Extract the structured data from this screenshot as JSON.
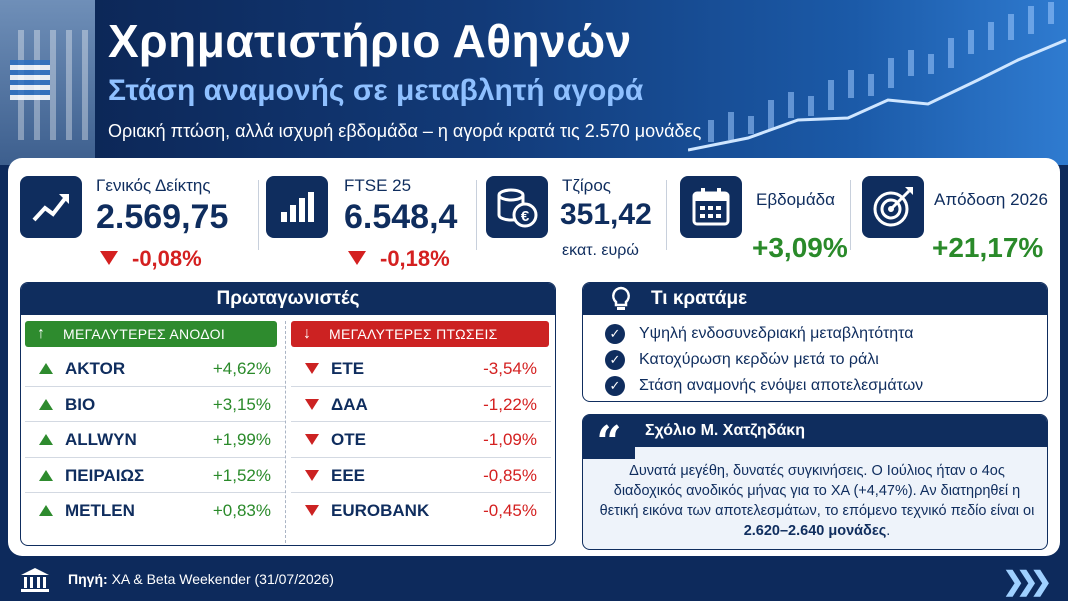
{
  "header": {
    "title": "Χρηματιστήριο Αθηνών",
    "subtitle": "Στάση αναμονής σε μεταβλητή αγορά",
    "tagline": "Οριακή πτώση, αλλά ισχυρή εβδομάδα – η αγορά κρατά τις 2.570 μονάδες"
  },
  "stats": [
    {
      "icon": "trend-up-icon",
      "label": "Γενικός Δείκτης",
      "value": "2.569,75",
      "change": "-0,08%"
    },
    {
      "icon": "bar-chart-icon",
      "label": "FTSE 25",
      "value": "6.548,4",
      "change": "-0,18%"
    },
    {
      "icon": "coins-euro-icon",
      "label": "Τζίρος",
      "value": "351,42",
      "unit": "εκατ. ευρώ"
    },
    {
      "icon": "calendar-icon",
      "label": "Εβδομάδα",
      "change": "+3,09%"
    },
    {
      "icon": "target-icon",
      "label": "Απόδοση 2026",
      "change": "+21,17%"
    }
  ],
  "movers": {
    "title": "Πρωταγωνιστές",
    "gainers_label": "ΜΕΓΑΛΥΤΕΡΕΣ ΑΝΟΔΟΙ",
    "losers_label": "ΜΕΓΑΛΥΤΕΡΕΣ ΠΤΩΣΕΙΣ",
    "gainers": [
      {
        "name": "AKTOR",
        "change": "+4,62%"
      },
      {
        "name": "BIO",
        "change": "+3,15%"
      },
      {
        "name": "ALLWYN",
        "change": "+1,99%"
      },
      {
        "name": "ΠΕΙΡΑΙΩΣ",
        "change": "+1,52%"
      },
      {
        "name": "METLEN",
        "change": "+0,83%"
      }
    ],
    "losers": [
      {
        "name": "ETE",
        "change": "-3,54%"
      },
      {
        "name": "ΔΑΑ",
        "change": "-1,22%"
      },
      {
        "name": "OTE",
        "change": "-1,09%"
      },
      {
        "name": "EEE",
        "change": "-0,85%"
      },
      {
        "name": "EUROBANK",
        "change": "-0,45%"
      }
    ]
  },
  "takeaways": {
    "title": "Τι κρατάμε",
    "items": [
      "Υψηλή ενδοσυνεδριακή μεταβλητότητα",
      "Κατοχύρωση κερδών μετά το ράλι",
      "Στάση αναμονής ενόψει αποτελεσμάτων"
    ]
  },
  "comment": {
    "title": "Σχόλιο Μ. Χατζηδάκη",
    "text": "Δυνατά μεγέθη, δυνατές συγκινήσεις. Ο Ιούλιος ήταν ο 4ος διαδοχικός ανοδικός μήνας για το ΧΑ (+4,47%). Αν διατηρηθεί η θετική εικόνα των αποτελεσμάτων, το επόμενο τεχνικό πεδίο είναι οι",
    "highlight": "2.620–2.640 μονάδες",
    "end": "."
  },
  "footer": {
    "source_label": "Πηγή:",
    "source_text": "ΧΑ & Beta Weekender (31/07/2026)"
  },
  "colors": {
    "navy": "#0f2d5e",
    "green": "#2e8b2e",
    "red": "#d42020"
  }
}
